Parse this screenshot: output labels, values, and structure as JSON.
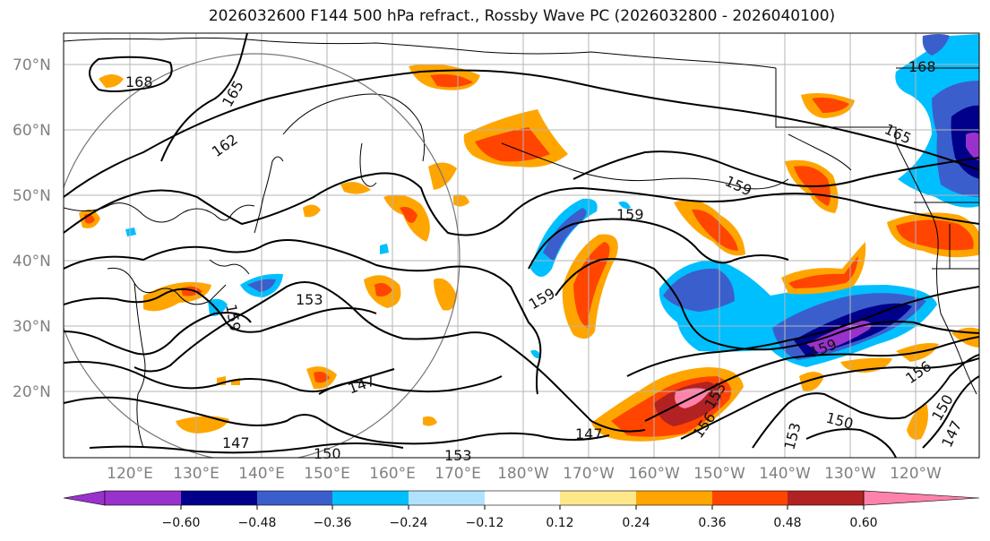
{
  "title": "2026032600 F144 500 hPa refract., Rossby Wave PC (2026032800 - 2026040100)",
  "lat_labels": [
    "70°N",
    "60°N",
    "50°N",
    "40°N",
    "30°N",
    "20°N"
  ],
  "lon_labels": [
    "120°E",
    "130°E",
    "140°E",
    "150°E",
    "160°E",
    "170°E",
    "180°W",
    "170°W",
    "160°W",
    "150°W",
    "140°W",
    "130°W",
    "120°W"
  ],
  "contour_labels": [
    "168",
    "165",
    "162",
    "165",
    "168",
    "159",
    "159",
    "159",
    "159",
    "153",
    "153",
    "147",
    "147",
    "150",
    "153",
    "147",
    "153",
    "156",
    "156",
    "150",
    "150",
    "147",
    "153",
    "159"
  ],
  "colorbar": {
    "ticks": [
      "−0.60",
      "−0.48",
      "−0.36",
      "−0.24",
      "−0.12",
      "0.12",
      "0.24",
      "0.36",
      "0.48",
      "0.60"
    ],
    "colors": [
      "#9932cc",
      "#00008b",
      "#3a5fcd",
      "#00bfff",
      "#b0e2ff",
      "#ffffff",
      "#ffe88a",
      "#ffa500",
      "#ff4500",
      "#b22222",
      "#ff82ab"
    ]
  }
}
